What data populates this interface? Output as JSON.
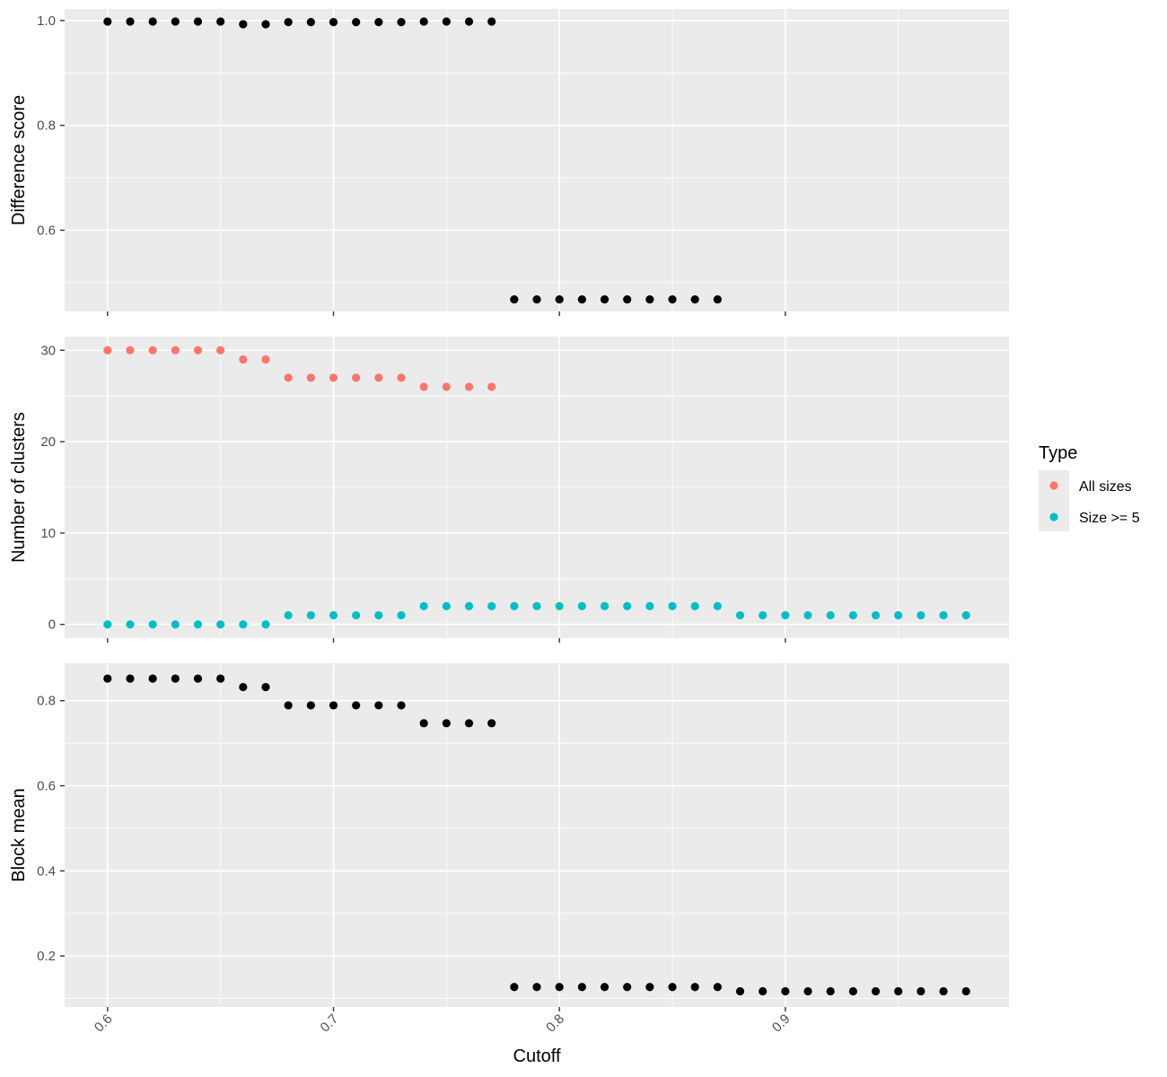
{
  "chart_data": {
    "type": "scatter",
    "xlabel": "Cutoff",
    "xlim": [
      0.581,
      0.999
    ],
    "x_ticks": [
      0.6,
      0.7,
      0.8,
      0.9
    ],
    "x_tick_labels": [
      "0.6",
      "0.7",
      "0.8",
      "0.9"
    ],
    "grid": true,
    "legend_placement": "right",
    "legend": {
      "title": "Type",
      "entries": [
        {
          "label": "All sizes",
          "color": "#f8766d"
        },
        {
          "label": "Size >= 5",
          "color": "#00bfc4"
        }
      ]
    },
    "panels": [
      {
        "ylabel": "Difference score",
        "ylim": [
          0.445,
          1.022
        ],
        "y_ticks": [
          0.6,
          0.8,
          1.0
        ],
        "y_tick_labels": [
          "0.6",
          "0.8",
          "1.0"
        ],
        "y_minor": [
          0.5,
          0.7,
          0.9
        ],
        "series": [
          {
            "color": "#000000",
            "points": [
              [
                0.6,
                0.998
              ],
              [
                0.61,
                0.998
              ],
              [
                0.62,
                0.998
              ],
              [
                0.63,
                0.998
              ],
              [
                0.64,
                0.998
              ],
              [
                0.65,
                0.998
              ],
              [
                0.66,
                0.993
              ],
              [
                0.67,
                0.993
              ],
              [
                0.68,
                0.997
              ],
              [
                0.69,
                0.997
              ],
              [
                0.7,
                0.997
              ],
              [
                0.71,
                0.997
              ],
              [
                0.72,
                0.997
              ],
              [
                0.73,
                0.997
              ],
              [
                0.74,
                0.998
              ],
              [
                0.75,
                0.998
              ],
              [
                0.76,
                0.998
              ],
              [
                0.77,
                0.998
              ],
              [
                0.78,
                0.468
              ],
              [
                0.79,
                0.468
              ],
              [
                0.8,
                0.468
              ],
              [
                0.81,
                0.468
              ],
              [
                0.82,
                0.468
              ],
              [
                0.83,
                0.468
              ],
              [
                0.84,
                0.468
              ],
              [
                0.85,
                0.468
              ],
              [
                0.86,
                0.468
              ],
              [
                0.87,
                0.468
              ]
            ]
          }
        ]
      },
      {
        "ylabel": "Number of clusters",
        "ylim": [
          -1.5,
          31.5
        ],
        "y_ticks": [
          0,
          10,
          20,
          30
        ],
        "y_tick_labels": [
          "0",
          "10",
          "20",
          "30"
        ],
        "y_minor": [
          5,
          15,
          25
        ],
        "series": [
          {
            "name": "All sizes",
            "color": "#f8766d",
            "points": [
              [
                0.6,
                30
              ],
              [
                0.61,
                30
              ],
              [
                0.62,
                30
              ],
              [
                0.63,
                30
              ],
              [
                0.64,
                30
              ],
              [
                0.65,
                30
              ],
              [
                0.66,
                29
              ],
              [
                0.67,
                29
              ],
              [
                0.68,
                27
              ],
              [
                0.69,
                27
              ],
              [
                0.7,
                27
              ],
              [
                0.71,
                27
              ],
              [
                0.72,
                27
              ],
              [
                0.73,
                27
              ],
              [
                0.74,
                26
              ],
              [
                0.75,
                26
              ],
              [
                0.76,
                26
              ],
              [
                0.77,
                26
              ]
            ]
          },
          {
            "name": "Size >= 5",
            "color": "#00bfc4",
            "points": [
              [
                0.6,
                0
              ],
              [
                0.61,
                0
              ],
              [
                0.62,
                0
              ],
              [
                0.63,
                0
              ],
              [
                0.64,
                0
              ],
              [
                0.65,
                0
              ],
              [
                0.66,
                0
              ],
              [
                0.67,
                0
              ],
              [
                0.68,
                1
              ],
              [
                0.69,
                1
              ],
              [
                0.7,
                1
              ],
              [
                0.71,
                1
              ],
              [
                0.72,
                1
              ],
              [
                0.73,
                1
              ],
              [
                0.74,
                2
              ],
              [
                0.75,
                2
              ],
              [
                0.76,
                2
              ],
              [
                0.77,
                2
              ],
              [
                0.78,
                2
              ],
              [
                0.79,
                2
              ],
              [
                0.8,
                2
              ],
              [
                0.81,
                2
              ],
              [
                0.82,
                2
              ],
              [
                0.83,
                2
              ],
              [
                0.84,
                2
              ],
              [
                0.85,
                2
              ],
              [
                0.86,
                2
              ],
              [
                0.87,
                2
              ],
              [
                0.88,
                1
              ],
              [
                0.89,
                1
              ],
              [
                0.9,
                1
              ],
              [
                0.91,
                1
              ],
              [
                0.92,
                1
              ],
              [
                0.93,
                1
              ],
              [
                0.94,
                1
              ],
              [
                0.95,
                1
              ],
              [
                0.96,
                1
              ],
              [
                0.97,
                1
              ],
              [
                0.98,
                1
              ]
            ]
          }
        ]
      },
      {
        "ylabel": "Block mean",
        "ylim": [
          0.08,
          0.888
        ],
        "y_ticks": [
          0.2,
          0.4,
          0.6,
          0.8
        ],
        "y_tick_labels": [
          "0.2",
          "0.4",
          "0.6",
          "0.8"
        ],
        "y_minor": [
          0.1,
          0.3,
          0.5,
          0.7
        ],
        "series": [
          {
            "color": "#000000",
            "points": [
              [
                0.6,
                0.852
              ],
              [
                0.61,
                0.852
              ],
              [
                0.62,
                0.852
              ],
              [
                0.63,
                0.852
              ],
              [
                0.64,
                0.852
              ],
              [
                0.65,
                0.852
              ],
              [
                0.66,
                0.832
              ],
              [
                0.67,
                0.832
              ],
              [
                0.68,
                0.789
              ],
              [
                0.69,
                0.789
              ],
              [
                0.7,
                0.789
              ],
              [
                0.71,
                0.789
              ],
              [
                0.72,
                0.789
              ],
              [
                0.73,
                0.789
              ],
              [
                0.74,
                0.747
              ],
              [
                0.75,
                0.747
              ],
              [
                0.76,
                0.747
              ],
              [
                0.77,
                0.747
              ],
              [
                0.78,
                0.127
              ],
              [
                0.79,
                0.127
              ],
              [
                0.8,
                0.127
              ],
              [
                0.81,
                0.127
              ],
              [
                0.82,
                0.127
              ],
              [
                0.83,
                0.127
              ],
              [
                0.84,
                0.127
              ],
              [
                0.85,
                0.127
              ],
              [
                0.86,
                0.127
              ],
              [
                0.87,
                0.127
              ],
              [
                0.88,
                0.117
              ],
              [
                0.89,
                0.117
              ],
              [
                0.9,
                0.117
              ],
              [
                0.91,
                0.117
              ],
              [
                0.92,
                0.117
              ],
              [
                0.93,
                0.117
              ],
              [
                0.94,
                0.117
              ],
              [
                0.95,
                0.117
              ],
              [
                0.96,
                0.117
              ],
              [
                0.97,
                0.117
              ],
              [
                0.98,
                0.117
              ]
            ]
          }
        ]
      }
    ]
  }
}
